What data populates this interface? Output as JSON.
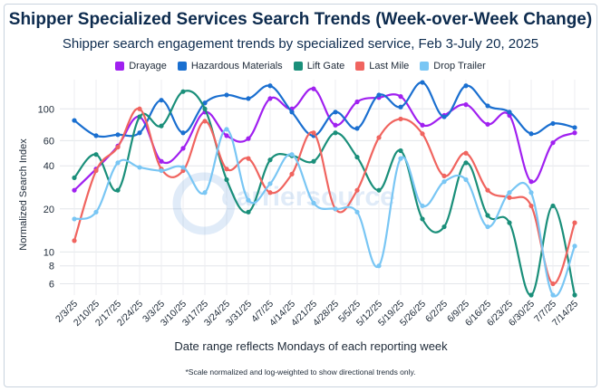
{
  "chart_data": {
    "type": "line",
    "title": "Shipper Specialized Services Search Trends (Week-over-Week Change)",
    "subtitle": "Shipper search engagement trends by specialized service, Feb 3-July 20, 2025",
    "xlabel": "Date range reflects Mondays of each reporting week",
    "ylabel": "Normalized Search Index",
    "footnote": "*Scale normalized and log-weighted to show directional trends only.",
    "watermark": "carriersource",
    "y_scale": "log",
    "ylim": [
      5,
      160
    ],
    "y_ticks": [
      6,
      8,
      10,
      20,
      40,
      60,
      100
    ],
    "grid": true,
    "legend_position": "top-center",
    "categories": [
      "2/3/25",
      "2/10/25",
      "2/17/25",
      "2/24/25",
      "3/3/25",
      "3/10/25",
      "3/17/25",
      "3/24/25",
      "3/31/25",
      "4/7/25",
      "4/14/25",
      "4/21/25",
      "4/28/25",
      "5/5/25",
      "5/12/25",
      "5/19/25",
      "5/26/25",
      "6/2/25",
      "6/9/25",
      "6/16/25",
      "6/23/25",
      "6/30/25",
      "7/7/25",
      "7/14/25"
    ],
    "series": [
      {
        "name": "Drayage",
        "color": "#a020f0",
        "values": [
          27,
          38,
          55,
          88,
          43,
          53,
          95,
          65,
          62,
          118,
          100,
          138,
          77,
          112,
          120,
          122,
          77,
          90,
          107,
          78,
          90,
          31,
          58,
          68
        ]
      },
      {
        "name": "Hazardous Materials",
        "color": "#1a6fd0",
        "values": [
          83,
          65,
          66,
          68,
          115,
          68,
          110,
          125,
          118,
          145,
          95,
          65,
          95,
          73,
          125,
          103,
          153,
          88,
          145,
          105,
          95,
          67,
          79,
          74
        ]
      },
      {
        "name": "Lift Gate",
        "color": "#1a8f7a",
        "values": [
          33,
          48,
          27,
          88,
          76,
          132,
          100,
          32,
          19,
          44,
          47,
          43,
          68,
          46,
          27,
          51,
          17,
          15,
          42,
          18,
          16,
          5,
          21,
          5
        ]
      },
      {
        "name": "Last Mile",
        "color": "#f0645f",
        "values": [
          12,
          37,
          54,
          100,
          38,
          37,
          82,
          38,
          45,
          26,
          35,
          68,
          20,
          27,
          63,
          85,
          67,
          34,
          49,
          27,
          24,
          21,
          6,
          16
        ]
      },
      {
        "name": "Drop Trailer",
        "color": "#79c6f4",
        "values": [
          17,
          19,
          42,
          39,
          37,
          39,
          26,
          72,
          23,
          30,
          48,
          22,
          20,
          19,
          8,
          45,
          21,
          31,
          32,
          15,
          26,
          26,
          5,
          11
        ]
      }
    ]
  }
}
